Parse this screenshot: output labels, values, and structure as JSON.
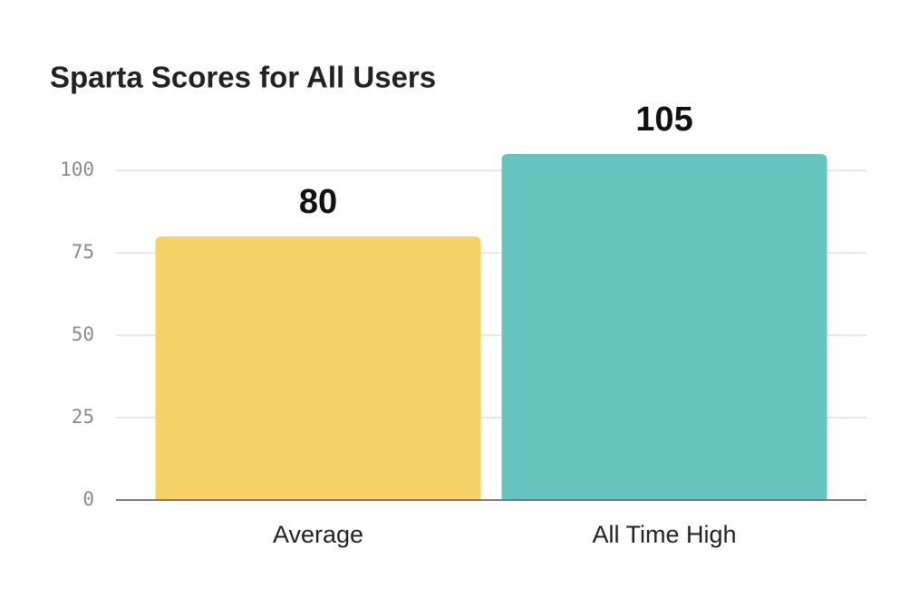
{
  "chart_data": {
    "type": "bar",
    "title": "Sparta Scores for All Users",
    "categories": [
      "Average",
      "All Time High"
    ],
    "values": [
      80,
      105
    ],
    "colors": [
      "#f5d166",
      "#66c4bf"
    ],
    "ylim": [
      0,
      105
    ],
    "yticks": [
      0,
      25,
      50,
      75,
      100
    ],
    "grid": true
  }
}
